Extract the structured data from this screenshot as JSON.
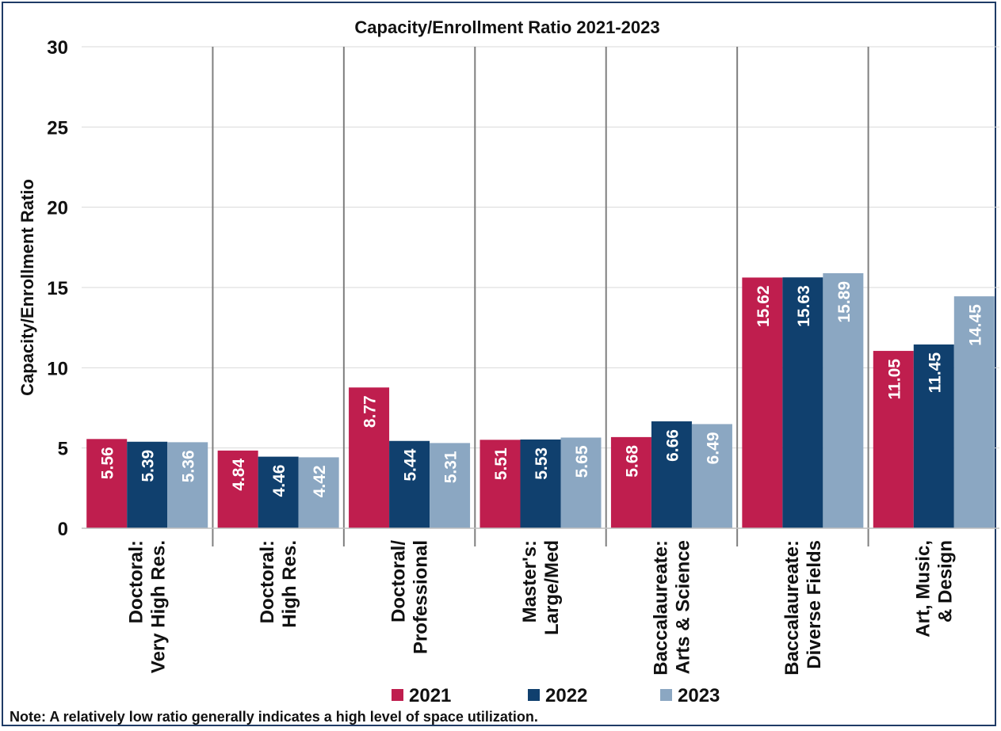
{
  "chart_data": {
    "type": "bar",
    "title": "Capacity/Enrollment Ratio 2021-2023",
    "ylabel": "Capacity/Enrollment  Ratio",
    "xlabel": "",
    "ylim": [
      0,
      30
    ],
    "yticks": [
      0,
      5,
      10,
      15,
      20,
      25,
      30
    ],
    "grid": true,
    "legend": "bottom",
    "categories": [
      [
        "Doctoral:",
        "Very High Res."
      ],
      [
        "Doctoral:",
        "High Res."
      ],
      [
        "Doctoral/",
        "Professional"
      ],
      [
        "Master's:",
        "Large/Med"
      ],
      [
        "Baccalaureate:",
        "Arts & Science"
      ],
      [
        "Baccalaureate:",
        "Diverse Fields"
      ],
      [
        "Art, Music,",
        "& Design"
      ]
    ],
    "series": [
      {
        "name": "2021",
        "color": "#bf1e4e",
        "values": [
          5.56,
          4.84,
          8.77,
          5.51,
          5.68,
          15.62,
          11.05
        ],
        "labels": [
          "5.56",
          "4.84",
          "8.77",
          "5.51",
          "5.68",
          "15.62",
          "11.05"
        ]
      },
      {
        "name": "2022",
        "color": "#10406e",
        "values": [
          5.39,
          4.46,
          5.44,
          5.53,
          6.66,
          15.63,
          11.45
        ],
        "labels": [
          "5.39",
          "4.46",
          "5.44",
          "5.53",
          "6.66",
          "15.63",
          "11.45"
        ]
      },
      {
        "name": "2023",
        "color": "#8ba7c2",
        "values": [
          5.36,
          4.42,
          5.31,
          5.65,
          6.49,
          15.89,
          14.45
        ],
        "labels": [
          "5.36",
          "4.42",
          "5.31",
          "5.65",
          "6.49",
          "15.89",
          "14.45"
        ]
      }
    ],
    "note": "Note: A relatively low ratio generally indicates a high level of space utilization."
  }
}
